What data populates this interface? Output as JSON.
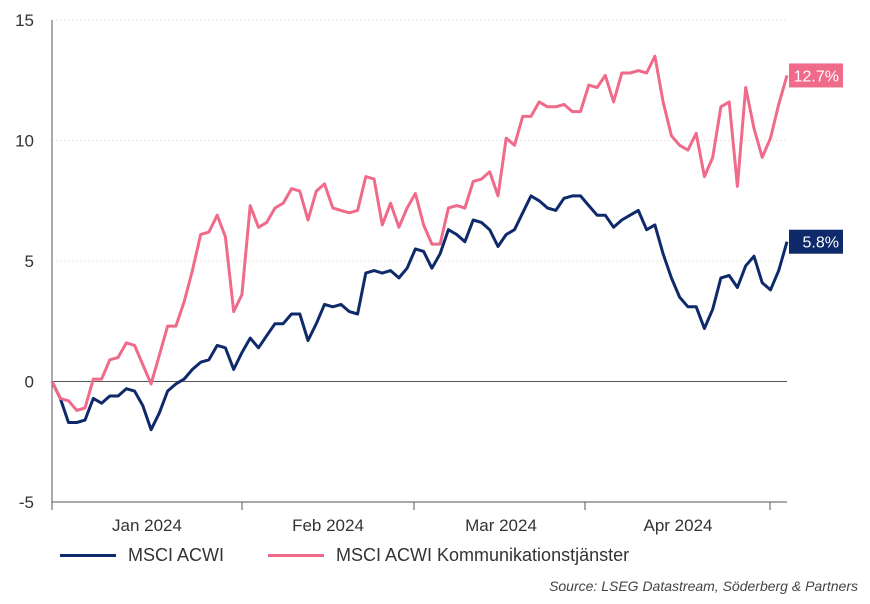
{
  "chart_data": {
    "type": "line",
    "ylim": [
      -5,
      15
    ],
    "yticks": [
      -5,
      0,
      5,
      10,
      15
    ],
    "xlabels": [
      "Jan 2024",
      "Feb 2024",
      "Mar 2024",
      "Apr 2024"
    ],
    "series": [
      {
        "name": "MSCI ACWI",
        "color": "#0e2a6b",
        "end_label": "5.8%",
        "values": [
          0,
          -0.7,
          -1.7,
          -1.7,
          -1.6,
          -0.7,
          -0.9,
          -0.6,
          -0.6,
          -0.3,
          -0.4,
          -1.0,
          -2.0,
          -1.3,
          -0.4,
          -0.1,
          0.1,
          0.5,
          0.8,
          0.9,
          1.5,
          1.4,
          0.5,
          1.2,
          1.8,
          1.4,
          1.9,
          2.4,
          2.4,
          2.8,
          2.8,
          1.7,
          2.4,
          3.2,
          3.1,
          3.2,
          2.9,
          2.8,
          4.5,
          4.6,
          4.5,
          4.6,
          4.3,
          4.7,
          5.5,
          5.4,
          4.7,
          5.3,
          6.3,
          6.1,
          5.8,
          6.7,
          6.6,
          6.3,
          5.6,
          6.1,
          6.3,
          7.0,
          7.7,
          7.5,
          7.2,
          7.1,
          7.6,
          7.7,
          7.7,
          7.3,
          6.9,
          6.9,
          6.4,
          6.7,
          6.9,
          7.1,
          6.3,
          6.5,
          5.3,
          4.3,
          3.5,
          3.1,
          3.1,
          2.2,
          3.0,
          4.3,
          4.4,
          3.9,
          4.8,
          5.2,
          4.1,
          3.8,
          4.6,
          5.8
        ]
      },
      {
        "name": "MSCI ACWI Kommunikationstjänster",
        "color": "#f06a8a",
        "end_label": "12.7%",
        "values": [
          0,
          -0.7,
          -0.8,
          -1.2,
          -1.1,
          0.1,
          0.1,
          0.9,
          1.0,
          1.6,
          1.5,
          0.7,
          -0.1,
          1.1,
          2.3,
          2.3,
          3.3,
          4.6,
          6.1,
          6.2,
          6.9,
          6.0,
          2.9,
          3.6,
          7.3,
          6.4,
          6.6,
          7.2,
          7.4,
          8.0,
          7.9,
          6.7,
          7.9,
          8.2,
          7.2,
          7.1,
          7.0,
          7.1,
          8.5,
          8.4,
          6.5,
          7.4,
          6.4,
          7.2,
          7.8,
          6.5,
          5.7,
          5.7,
          7.2,
          7.3,
          7.2,
          8.3,
          8.4,
          8.7,
          7.7,
          10.1,
          9.8,
          11.0,
          11.0,
          11.6,
          11.4,
          11.4,
          11.5,
          11.2,
          11.2,
          12.3,
          12.2,
          12.7,
          11.6,
          12.8,
          12.8,
          12.9,
          12.8,
          13.5,
          11.6,
          10.2,
          9.8,
          9.6,
          10.3,
          8.5,
          9.3,
          11.4,
          11.6,
          8.1,
          12.2,
          10.5,
          9.3,
          10.1,
          11.5,
          12.7
        ]
      }
    ]
  },
  "legend": {
    "acwi": "MSCI ACWI",
    "comm": "MSCI ACWI Kommunikationstjänster"
  },
  "source": "Source: LSEG Datastream, Söderberg & Partners"
}
